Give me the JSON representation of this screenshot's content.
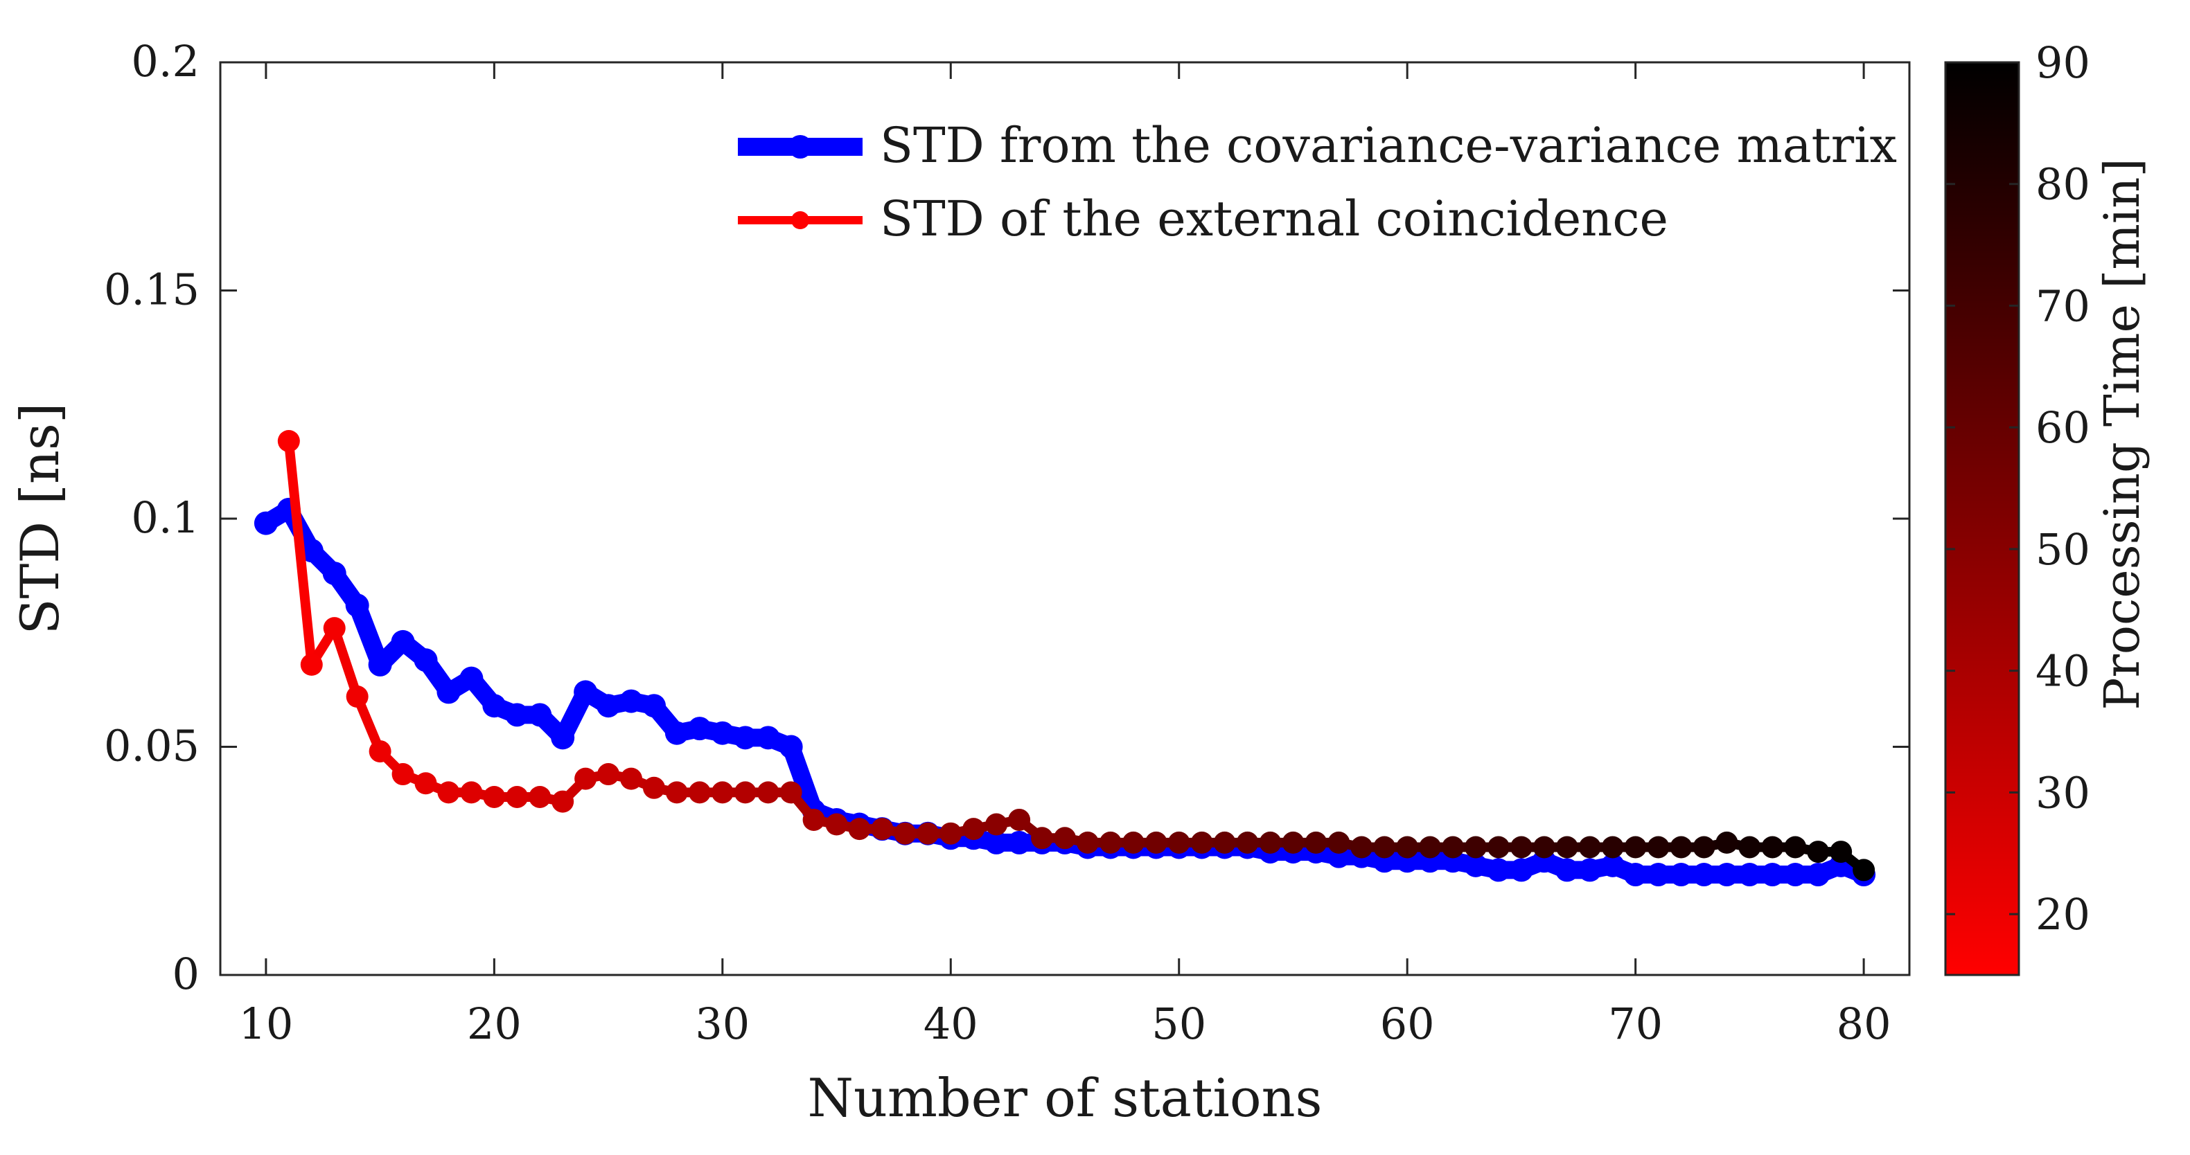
{
  "chart_data": {
    "type": "line",
    "xlabel": "Number of stations",
    "ylabel": "STD [ns]",
    "xlim": [
      8,
      82
    ],
    "ylim": [
      0,
      0.2
    ],
    "xticks": [
      10,
      20,
      30,
      40,
      50,
      60,
      70,
      80
    ],
    "yticks": [
      0,
      0.05,
      0.1,
      0.15,
      0.2
    ],
    "xtick_labels": [
      "10",
      "20",
      "30",
      "40",
      "50",
      "60",
      "70",
      "80"
    ],
    "ytick_labels": [
      "0",
      "0.05",
      "0.1",
      "0.15",
      "0.2"
    ],
    "grid": false,
    "legend_position": "top-right",
    "x": [
      10,
      11,
      12,
      13,
      14,
      15,
      16,
      17,
      18,
      19,
      20,
      21,
      22,
      23,
      24,
      25,
      26,
      27,
      28,
      29,
      30,
      31,
      32,
      33,
      34,
      35,
      36,
      37,
      38,
      39,
      40,
      41,
      42,
      43,
      44,
      45,
      46,
      47,
      48,
      49,
      50,
      51,
      52,
      53,
      54,
      55,
      56,
      57,
      58,
      59,
      60,
      61,
      62,
      63,
      64,
      65,
      66,
      67,
      68,
      69,
      70,
      71,
      72,
      73,
      74,
      75,
      76,
      77,
      78,
      79,
      80
    ],
    "series": [
      {
        "name": "STD from the covariance-variance matrix",
        "color": "#0000ff",
        "values": [
          0.099,
          0.102,
          0.093,
          0.088,
          0.081,
          0.068,
          0.073,
          0.069,
          0.062,
          0.065,
          0.059,
          0.057,
          0.057,
          0.052,
          0.062,
          0.059,
          0.06,
          0.059,
          0.053,
          0.054,
          0.053,
          0.052,
          0.052,
          0.05,
          0.036,
          0.034,
          0.033,
          0.032,
          0.031,
          0.031,
          0.03,
          0.03,
          0.029,
          0.029,
          0.029,
          0.029,
          0.028,
          0.028,
          0.028,
          0.028,
          0.028,
          0.028,
          0.028,
          0.028,
          0.027,
          0.027,
          0.027,
          0.026,
          0.026,
          0.025,
          0.025,
          0.025,
          0.025,
          0.024,
          0.023,
          0.023,
          0.025,
          0.023,
          0.023,
          0.024,
          0.022,
          0.022,
          0.022,
          0.022,
          0.022,
          0.022,
          0.022,
          0.022,
          0.022,
          0.024,
          0.022
        ]
      },
      {
        "name": "STD of the external coincidence",
        "color": "#ff0000",
        "values": [
          null,
          0.117,
          0.068,
          0.076,
          0.061,
          0.049,
          0.044,
          0.042,
          0.04,
          0.04,
          0.039,
          0.039,
          0.039,
          0.038,
          0.043,
          0.044,
          0.043,
          0.041,
          0.04,
          0.04,
          0.04,
          0.04,
          0.04,
          0.04,
          0.034,
          0.033,
          0.032,
          0.032,
          0.031,
          0.031,
          0.031,
          0.032,
          0.033,
          0.034,
          0.03,
          0.03,
          0.029,
          0.029,
          0.029,
          0.029,
          0.029,
          0.029,
          0.029,
          0.029,
          0.029,
          0.029,
          0.029,
          0.029,
          0.028,
          0.028,
          0.028,
          0.028,
          0.028,
          0.028,
          0.028,
          0.028,
          0.028,
          0.028,
          0.028,
          0.028,
          0.028,
          0.028,
          0.028,
          0.028,
          0.029,
          0.028,
          0.028,
          0.028,
          0.027,
          0.027,
          0.023
        ]
      }
    ],
    "colorbar": {
      "label": "Processing Time [min]",
      "range": [
        15,
        90
      ],
      "ticks": [
        20,
        30,
        40,
        50,
        60,
        70,
        80,
        90
      ],
      "tick_labels": [
        "20",
        "30",
        "40",
        "50",
        "60",
        "70",
        "80",
        "90"
      ],
      "color_low": "#ff0000",
      "color_high": "#000000"
    }
  }
}
